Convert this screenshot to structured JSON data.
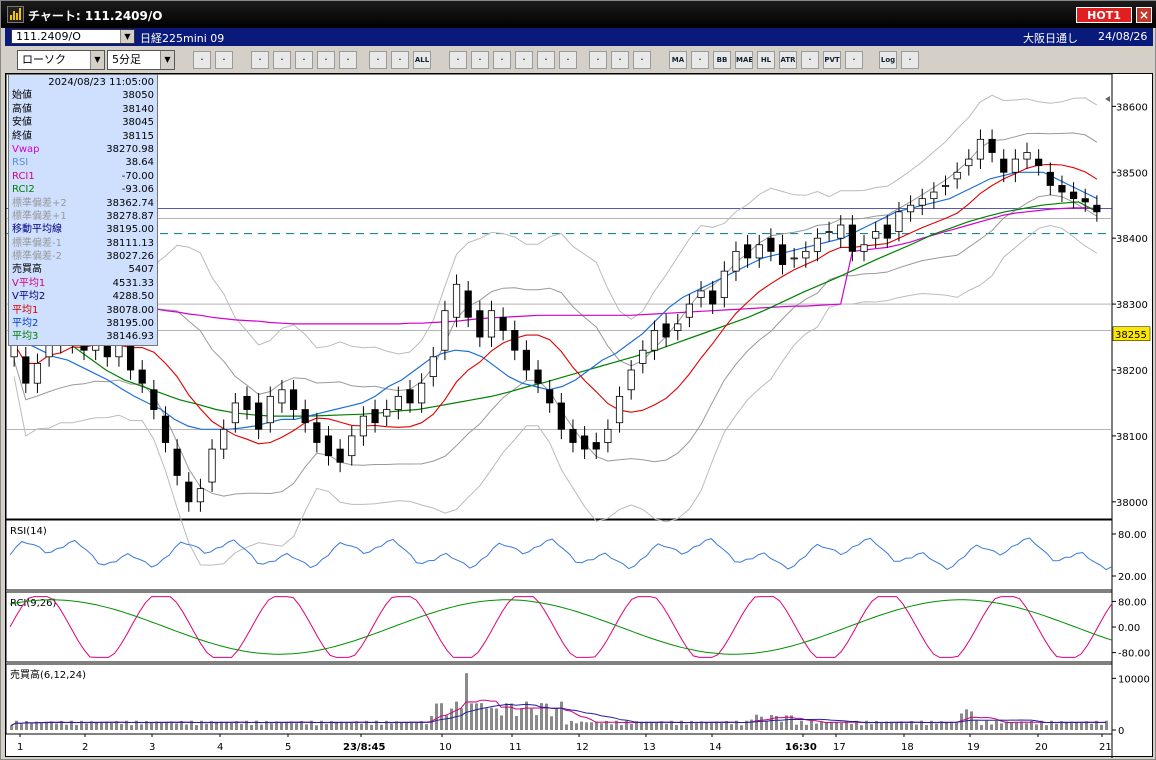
{
  "window": {
    "title": "チャート: 111.2409/O",
    "hot_label": "HOT1",
    "close_label": "×"
  },
  "infobar": {
    "symbol": "111.2409/O",
    "name": "日経225mini 09",
    "session": "大阪日通し",
    "date": "24/08/26"
  },
  "toolbar": {
    "chart_type": "ローソク",
    "interval": "5分足",
    "buttons": [
      "zoom",
      "cross",
      "ruler",
      "trend",
      "fib",
      "box",
      "draw1",
      "draw2",
      "draw3",
      "all",
      "pen",
      "edit",
      "pointer",
      "undo",
      "doc",
      "trash",
      "grid",
      "tool",
      "color",
      "ma",
      "mc",
      "bb",
      "mae",
      "hl",
      "atr",
      "pq",
      "pvt",
      "win",
      "log",
      "exit"
    ],
    "labels": {
      "ma": "MA",
      "bb": "BB",
      "mae": "MAE",
      "hl": "HL",
      "atr": "ATR",
      "pvt": "PVT",
      "log": "Log",
      "all": "ALL"
    }
  },
  "panel": {
    "datetime": "2024/08/23 11:05:00",
    "rows": [
      {
        "k": "始値",
        "v": "38050",
        "c": "#000"
      },
      {
        "k": "高値",
        "v": "38140",
        "c": "#000"
      },
      {
        "k": "安値",
        "v": "38045",
        "c": "#000"
      },
      {
        "k": "終値",
        "v": "38115",
        "c": "#000"
      },
      {
        "k": "Vwap",
        "v": "38270.98",
        "c": "#d000d0"
      },
      {
        "k": "RSI",
        "v": "38.64",
        "c": "#5a8fd8"
      },
      {
        "k": "RCI1",
        "v": "-70.00",
        "c": "#d00080"
      },
      {
        "k": "RCI2",
        "v": "-93.06",
        "c": "#008000"
      },
      {
        "k": "標準偏差+2",
        "v": "38362.74",
        "c": "#999"
      },
      {
        "k": "標準偏差+1",
        "v": "38278.87",
        "c": "#999"
      },
      {
        "k": "移動平均線",
        "v": "38195.00",
        "c": "#000080"
      },
      {
        "k": "標準偏差-1",
        "v": "38111.13",
        "c": "#999"
      },
      {
        "k": "標準偏差-2",
        "v": "38027.26",
        "c": "#999"
      },
      {
        "k": "売買高",
        "v": "5407",
        "c": "#000"
      },
      {
        "k": "V平均1",
        "v": "4531.33",
        "c": "#d00080"
      },
      {
        "k": "V平均2",
        "v": "4288.50",
        "c": "#000080"
      },
      {
        "k": "平均1",
        "v": "38078.00",
        "c": "#d00000"
      },
      {
        "k": "平均2",
        "v": "38195.00",
        "c": "#0040c0"
      },
      {
        "k": "平均3",
        "v": "38146.93",
        "c": "#008000"
      }
    ]
  },
  "chart_data": {
    "type": "candlestick",
    "price_axis": {
      "ticks": [
        "38600",
        "38500",
        "38400",
        "38300",
        "38200",
        "38100",
        "38000"
      ],
      "ylim": [
        37980,
        38640
      ],
      "current_price": "38255"
    },
    "x_ticks": [
      "1",
      "2",
      "3",
      "4",
      "5",
      "23/8:45",
      "10",
      "11",
      "12",
      "13",
      "14",
      "16:30",
      "17",
      "18",
      "19",
      "20",
      "21"
    ],
    "rsi": {
      "label": "RSI(14)",
      "ticks": [
        "80.00",
        "20.00"
      ]
    },
    "rci": {
      "label": "RCI(9,26)",
      "ticks": [
        "80.00",
        "0.00",
        "-80.00"
      ]
    },
    "volume": {
      "label": "売買高(6,12,24)",
      "ticks": [
        "10000",
        "0"
      ]
    },
    "close": [
      38240,
      38180,
      38210,
      38260,
      38240,
      38280,
      38230,
      38270,
      38220,
      38250,
      38200,
      38180,
      38140,
      38090,
      38040,
      38000,
      38020,
      38080,
      38110,
      38150,
      38140,
      38110,
      38160,
      38170,
      38140,
      38120,
      38090,
      38070,
      38060,
      38100,
      38130,
      38120,
      38140,
      38160,
      38150,
      38180,
      38220,
      38290,
      38330,
      38280,
      38250,
      38290,
      38260,
      38230,
      38200,
      38180,
      38150,
      38110,
      38090,
      38080,
      38080,
      38110,
      38160,
      38200,
      38230,
      38260,
      38250,
      38270,
      38300,
      38320,
      38300,
      38350,
      38380,
      38370,
      38390,
      38380,
      38360,
      38370,
      38380,
      38400,
      38410,
      38420,
      38380,
      38390,
      38410,
      38400,
      38440,
      38450,
      38460,
      38470,
      38480,
      38500,
      38520,
      38550,
      38530,
      38500,
      38520,
      38530,
      38510,
      38480,
      38470,
      38460,
      38455,
      38440
    ],
    "open": [
      38220,
      38220,
      38180,
      38220,
      38270,
      38240,
      38270,
      38230,
      38260,
      38220,
      38240,
      38200,
      38170,
      38130,
      38080,
      38030,
      38000,
      38030,
      38080,
      38120,
      38160,
      38150,
      38120,
      38150,
      38170,
      38140,
      38120,
      38100,
      38080,
      38070,
      38100,
      38140,
      38130,
      38140,
      38170,
      38150,
      38190,
      38230,
      38280,
      38320,
      38290,
      38250,
      38280,
      38260,
      38230,
      38200,
      38170,
      38150,
      38110,
      38100,
      38090,
      38090,
      38120,
      38170,
      38210,
      38230,
      38270,
      38260,
      38280,
      38310,
      38320,
      38310,
      38350,
      38390,
      38370,
      38400,
      38390,
      38370,
      38370,
      38380,
      38410,
      38400,
      38420,
      38380,
      38400,
      38420,
      38410,
      38440,
      38450,
      38460,
      38480,
      38490,
      38510,
      38520,
      38550,
      38520,
      38500,
      38520,
      38520,
      38500,
      38480,
      38470,
      38460,
      38450
    ],
    "vwap": [
      38330,
      38330,
      38330,
      38325,
      38320,
      38315,
      38312,
      38310,
      38306,
      38303,
      38300,
      38296,
      38293,
      38290,
      38288,
      38285,
      38283,
      38280,
      38278,
      38276,
      38275,
      38274,
      38272,
      38271,
      38270,
      38270,
      38270,
      38270,
      38270,
      38270,
      38270,
      38270,
      38270,
      38270,
      38271,
      38271,
      38272,
      38273,
      38274,
      38276,
      38278,
      38279,
      38280,
      38281,
      38282,
      38283,
      38283,
      38283,
      38283,
      38283,
      38283,
      38283,
      38283,
      38283,
      38284,
      38285,
      38286,
      38287,
      38288,
      38289,
      38290,
      38291,
      38292,
      38293,
      38294,
      38295,
      38296,
      38297,
      38297,
      38298,
      38299,
      38300,
      38380,
      38382,
      38384,
      38386,
      38390,
      38394,
      38400,
      38405,
      38410,
      38415,
      38420,
      38425,
      38430,
      38435,
      38438,
      38440,
      38442,
      38444,
      38445,
      38446,
      38446,
      38445
    ],
    "ma2": [
      38260,
      38240,
      38230,
      38220,
      38215,
      38205,
      38195,
      38185,
      38172,
      38160,
      38150,
      38140,
      38125,
      38115,
      38110,
      38110,
      38110,
      38112,
      38115,
      38120,
      38125,
      38125,
      38130,
      38135,
      38140,
      38145,
      38150,
      38160,
      38175,
      38185,
      38200,
      38215,
      38225,
      38230,
      38228,
      38220,
      38205,
      38190,
      38180,
      38175,
      38170,
      38175,
      38185,
      38200,
      38215,
      38225,
      38240,
      38255,
      38275,
      38295,
      38310,
      38320,
      38330,
      38340,
      38350,
      38360,
      38370,
      38375,
      38380,
      38385,
      38390,
      38395,
      38400,
      38410,
      38420,
      38430,
      38440,
      38445,
      38450,
      38455,
      38460,
      38470,
      38480,
      38490,
      38495,
      38500,
      38500,
      38500,
      38490,
      38480,
      38470,
      38460
    ],
    "ma3": [
      38330,
      38300,
      38270,
      38240,
      38220,
      38200,
      38185,
      38175,
      38165,
      38155,
      38148,
      38140,
      38135,
      38132,
      38130,
      38130,
      38130,
      38131,
      38132,
      38133,
      38135,
      38138,
      38140,
      38145,
      38150,
      38155,
      38160,
      38167,
      38175,
      38182,
      38190,
      38198,
      38206,
      38214,
      38222,
      38230,
      38240,
      38250,
      38260,
      38270,
      38280,
      38292,
      38305,
      38318,
      38330,
      38342,
      38355,
      38368,
      38380,
      38392,
      38405,
      38415,
      38425,
      38433,
      38440,
      38445,
      38450,
      38453,
      38455,
      38440
    ],
    "ma1": [
      38200,
      38210,
      38230,
      38250,
      38260,
      38250,
      38230,
      38180,
      38120,
      38070,
      38040,
      38050,
      38080,
      38120,
      38140,
      38150,
      38140,
      38120,
      38110,
      38100,
      38100,
      38110,
      38120,
      38140,
      38180,
      38250,
      38300,
      38290,
      38250,
      38220,
      38190,
      38150,
      38120,
      38100,
      38090,
      38090,
      38110,
      38150,
      38190,
      38220,
      38240,
      38260,
      38280,
      38310,
      38330,
      38330,
      38340,
      38350,
      38370,
      38380,
      38370,
      38370,
      38380,
      38390,
      38400,
      38420,
      38440,
      38460,
      38480,
      38490,
      38510,
      38530,
      38540,
      38530,
      38520,
      38520,
      38500,
      38490,
      38470,
      38460,
      38450
    ]
  }
}
